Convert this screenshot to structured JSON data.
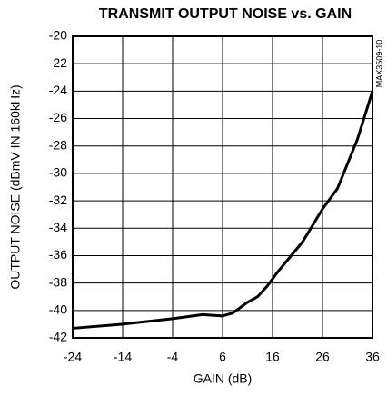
{
  "chart_data": {
    "type": "line",
    "title": "TRANSMIT OUTPUT NOISE vs. GAIN",
    "xlabel": "GAIN (dB)",
    "ylabel": "OUTPUT NOISE (dBmV IN 160kHz)",
    "note": "MAX3509-10",
    "x": [
      -24,
      -14,
      -4,
      2,
      6,
      8,
      11,
      13,
      15,
      17,
      22,
      26,
      29,
      33,
      36
    ],
    "series": [
      {
        "name": "noise",
        "color": "#000000",
        "values": [
          -41.3,
          -41.0,
          -40.6,
          -40.3,
          -40.4,
          -40.2,
          -39.4,
          -39.0,
          -38.2,
          -37.2,
          -35.0,
          -32.6,
          -31.1,
          -27.5,
          -24.0
        ]
      }
    ],
    "xlim": [
      -24,
      36
    ],
    "xticks": [
      -24,
      -14,
      -4,
      6,
      16,
      26,
      36
    ],
    "ylim": [
      -42,
      -20
    ],
    "yticks": [
      -42,
      -40,
      -38,
      -36,
      -34,
      -32,
      -30,
      -28,
      -26,
      -24,
      -22,
      -20
    ],
    "grid": true
  }
}
